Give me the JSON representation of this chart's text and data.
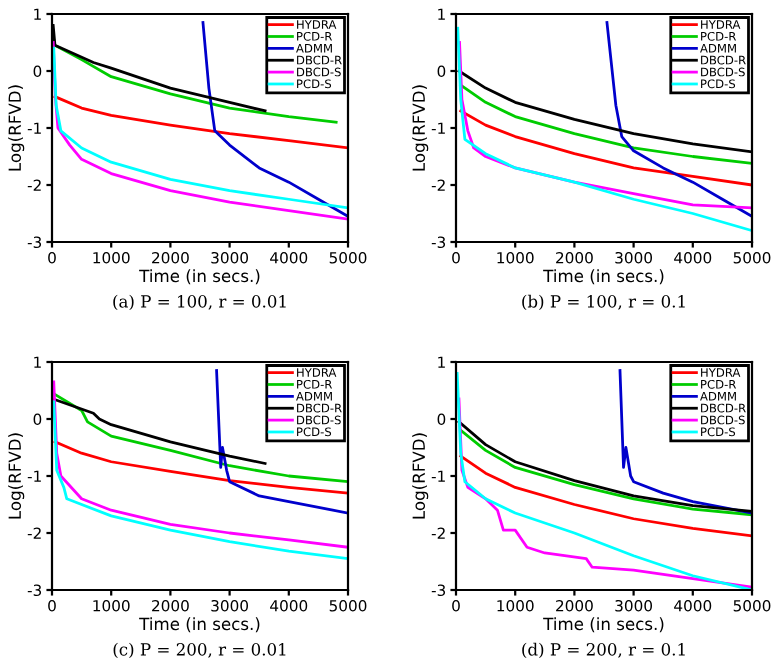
{
  "chart_data": [
    {
      "type": "line",
      "title": "(a) P = 100, r = 0.01",
      "xlabel": "Time (in secs.)",
      "ylabel": "Log(RFVD)",
      "xlim": [
        0,
        5000
      ],
      "ylim": [
        -3,
        1
      ],
      "xticks": [
        0,
        1000,
        2000,
        3000,
        4000,
        5000
      ],
      "yticks": [
        -3,
        -2,
        -1,
        0,
        1
      ],
      "legend": "top right",
      "grid": false,
      "series": [
        {
          "name": "HYDRA",
          "color": "#ff0000",
          "x": [
            50,
            500,
            1000,
            2000,
            3000,
            4000,
            5000
          ],
          "values": [
            -0.45,
            -0.65,
            -0.78,
            -0.95,
            -1.1,
            -1.22,
            -1.35
          ]
        },
        {
          "name": "PCD-R",
          "color": "#00cc00",
          "x": [
            20,
            50,
            500,
            1000,
            2000,
            3000,
            4000,
            4800
          ],
          "values": [
            0.6,
            0.45,
            0.2,
            -0.1,
            -0.4,
            -0.65,
            -0.8,
            -0.9
          ]
        },
        {
          "name": "ADMM",
          "color": "#0000cc",
          "x": [
            2550,
            2650,
            2750,
            3000,
            3500,
            4000,
            4500,
            5000
          ],
          "values": [
            0.85,
            -0.3,
            -1.05,
            -1.3,
            -1.7,
            -1.95,
            -2.25,
            -2.55
          ]
        },
        {
          "name": "DBCD-R",
          "color": "#000000",
          "x": [
            20,
            50,
            700,
            1000,
            2000,
            3000,
            3600
          ],
          "values": [
            0.8,
            0.45,
            0.15,
            0.05,
            -0.3,
            -0.55,
            -0.7
          ]
        },
        {
          "name": "DBCD-S",
          "color": "#ff00ff",
          "x": [
            20,
            60,
            100,
            300,
            500,
            1000,
            2000,
            3000,
            4000,
            5000
          ],
          "values": [
            0.5,
            -0.5,
            -1.0,
            -1.3,
            -1.55,
            -1.8,
            -2.1,
            -2.3,
            -2.45,
            -2.6
          ]
        },
        {
          "name": "PCD-S",
          "color": "#00ffff",
          "x": [
            30,
            70,
            150,
            500,
            1000,
            2000,
            3000,
            4000,
            5000
          ],
          "values": [
            0.4,
            -0.6,
            -1.05,
            -1.35,
            -1.6,
            -1.9,
            -2.1,
            -2.25,
            -2.4
          ]
        }
      ]
    },
    {
      "type": "line",
      "title": "(b) P = 100, r = 0.1",
      "xlabel": "Time (in secs.)",
      "ylabel": "Log(RFVD)",
      "xlim": [
        0,
        5000
      ],
      "ylim": [
        -3,
        1
      ],
      "xticks": [
        0,
        1000,
        2000,
        3000,
        4000,
        5000
      ],
      "yticks": [
        -3,
        -2,
        -1,
        0,
        1
      ],
      "legend": "top right",
      "grid": false,
      "series": [
        {
          "name": "HYDRA",
          "color": "#ff0000",
          "x": [
            80,
            500,
            1000,
            2000,
            3000,
            4000,
            5000
          ],
          "values": [
            -0.7,
            -0.95,
            -1.15,
            -1.45,
            -1.7,
            -1.85,
            -2.0
          ]
        },
        {
          "name": "PCD-R",
          "color": "#00cc00",
          "x": [
            80,
            500,
            1000,
            2000,
            3000,
            4000,
            5000
          ],
          "values": [
            -0.25,
            -0.55,
            -0.8,
            -1.1,
            -1.35,
            -1.5,
            -1.62
          ]
        },
        {
          "name": "ADMM",
          "color": "#0000cc",
          "x": [
            2550,
            2700,
            2800,
            3000,
            3500,
            4000,
            4500,
            5000
          ],
          "values": [
            0.85,
            -0.6,
            -1.15,
            -1.4,
            -1.7,
            -1.95,
            -2.25,
            -2.55
          ]
        },
        {
          "name": "DBCD-R",
          "color": "#000000",
          "x": [
            50,
            500,
            1000,
            2000,
            3000,
            4000,
            5000
          ],
          "values": [
            0.0,
            -0.3,
            -0.55,
            -0.85,
            -1.1,
            -1.28,
            -1.42
          ]
        },
        {
          "name": "DBCD-S",
          "color": "#ff00ff",
          "x": [
            60,
            100,
            200,
            300,
            500,
            1000,
            2000,
            3000,
            4000,
            5000
          ],
          "values": [
            0.5,
            -0.5,
            -1.05,
            -1.35,
            -1.5,
            -1.7,
            -1.95,
            -2.15,
            -2.35,
            -2.4
          ]
        },
        {
          "name": "PCD-S",
          "color": "#00ffff",
          "x": [
            30,
            80,
            150,
            500,
            1000,
            2000,
            3000,
            4000,
            5000
          ],
          "values": [
            0.75,
            -0.5,
            -1.2,
            -1.45,
            -1.7,
            -1.95,
            -2.25,
            -2.5,
            -2.8
          ]
        }
      ]
    },
    {
      "type": "line",
      "title": "(c) P = 200, r = 0.01",
      "xlabel": "Time (in secs.)",
      "ylabel": "Log(RFVD)",
      "xlim": [
        0,
        5000
      ],
      "ylim": [
        -3,
        1
      ],
      "xticks": [
        0,
        1000,
        2000,
        3000,
        4000,
        5000
      ],
      "yticks": [
        -3,
        -2,
        -1,
        0,
        1
      ],
      "legend": "top right",
      "grid": false,
      "series": [
        {
          "name": "HYDRA",
          "color": "#ff0000",
          "x": [
            50,
            500,
            1000,
            2000,
            3000,
            4000,
            5000
          ],
          "values": [
            -0.4,
            -0.6,
            -0.75,
            -0.92,
            -1.08,
            -1.2,
            -1.3
          ]
        },
        {
          "name": "PCD-R",
          "color": "#00cc00",
          "x": [
            20,
            500,
            600,
            1000,
            2000,
            3000,
            4000,
            5000
          ],
          "values": [
            0.45,
            0.15,
            -0.05,
            -0.3,
            -0.55,
            -0.82,
            -1.0,
            -1.1
          ]
        },
        {
          "name": "ADMM",
          "color": "#0000cc",
          "x": [
            2780,
            2850,
            2880,
            2950,
            3000,
            3500,
            4000,
            5000
          ],
          "values": [
            0.85,
            -0.85,
            -0.5,
            -0.9,
            -1.1,
            -1.35,
            -1.45,
            -1.65
          ]
        },
        {
          "name": "DBCD-R",
          "color": "#000000",
          "x": [
            20,
            700,
            800,
            1000,
            2000,
            3000,
            3600
          ],
          "values": [
            0.35,
            0.1,
            0.0,
            -0.1,
            -0.4,
            -0.65,
            -0.78
          ]
        },
        {
          "name": "DBCD-S",
          "color": "#ff00ff",
          "x": [
            30,
            80,
            150,
            500,
            1000,
            2000,
            3000,
            4000,
            5000
          ],
          "values": [
            0.65,
            -0.6,
            -1.0,
            -1.4,
            -1.6,
            -1.85,
            -2.0,
            -2.12,
            -2.25
          ]
        },
        {
          "name": "PCD-S",
          "color": "#00ffff",
          "x": [
            30,
            80,
            200,
            250,
            1000,
            2000,
            3000,
            4000,
            5000
          ],
          "values": [
            0.3,
            -0.9,
            -1.2,
            -1.4,
            -1.7,
            -1.95,
            -2.15,
            -2.32,
            -2.45
          ]
        }
      ]
    },
    {
      "type": "line",
      "title": "(d) P = 200, r = 0.1",
      "xlabel": "Time (in secs.)",
      "ylabel": "Log(RFVD)",
      "xlim": [
        0,
        5000
      ],
      "ylim": [
        -3,
        1
      ],
      "xticks": [
        0,
        1000,
        2000,
        3000,
        4000,
        5000
      ],
      "yticks": [
        -3,
        -2,
        -1,
        0,
        1
      ],
      "legend": "top right",
      "grid": false,
      "series": [
        {
          "name": "HYDRA",
          "color": "#ff0000",
          "x": [
            80,
            500,
            1000,
            2000,
            3000,
            4000,
            5000
          ],
          "values": [
            -0.65,
            -0.95,
            -1.2,
            -1.5,
            -1.75,
            -1.92,
            -2.05
          ]
        },
        {
          "name": "PCD-R",
          "color": "#00cc00",
          "x": [
            80,
            500,
            1000,
            2000,
            3000,
            4000,
            5000
          ],
          "values": [
            -0.2,
            -0.55,
            -0.85,
            -1.15,
            -1.4,
            -1.58,
            -1.68
          ]
        },
        {
          "name": "ADMM",
          "color": "#0000cc",
          "x": [
            2770,
            2830,
            2870,
            2950,
            3000,
            3500,
            4000,
            5000
          ],
          "values": [
            0.85,
            -0.85,
            -0.5,
            -1.0,
            -1.1,
            -1.3,
            -1.45,
            -1.65
          ]
        },
        {
          "name": "DBCD-R",
          "color": "#000000",
          "x": [
            50,
            500,
            1000,
            2000,
            3000,
            4000,
            5000
          ],
          "values": [
            -0.05,
            -0.45,
            -0.75,
            -1.08,
            -1.35,
            -1.52,
            -1.62
          ]
        },
        {
          "name": "DBCD-S",
          "color": "#ff00ff",
          "x": [
            50,
            100,
            200,
            500,
            700,
            800,
            1000,
            1200,
            1500,
            2200,
            2300,
            3000,
            4000,
            5000
          ],
          "values": [
            0.35,
            -0.9,
            -1.2,
            -1.4,
            -1.6,
            -1.95,
            -1.95,
            -2.25,
            -2.35,
            -2.45,
            -2.6,
            -2.65,
            -2.8,
            -2.95
          ]
        },
        {
          "name": "PCD-S",
          "color": "#00ffff",
          "x": [
            20,
            80,
            150,
            500,
            1000,
            2000,
            3000,
            4000,
            5000
          ],
          "values": [
            0.8,
            -0.6,
            -1.1,
            -1.4,
            -1.65,
            -2.0,
            -2.4,
            -2.75,
            -3.0
          ]
        }
      ]
    }
  ]
}
